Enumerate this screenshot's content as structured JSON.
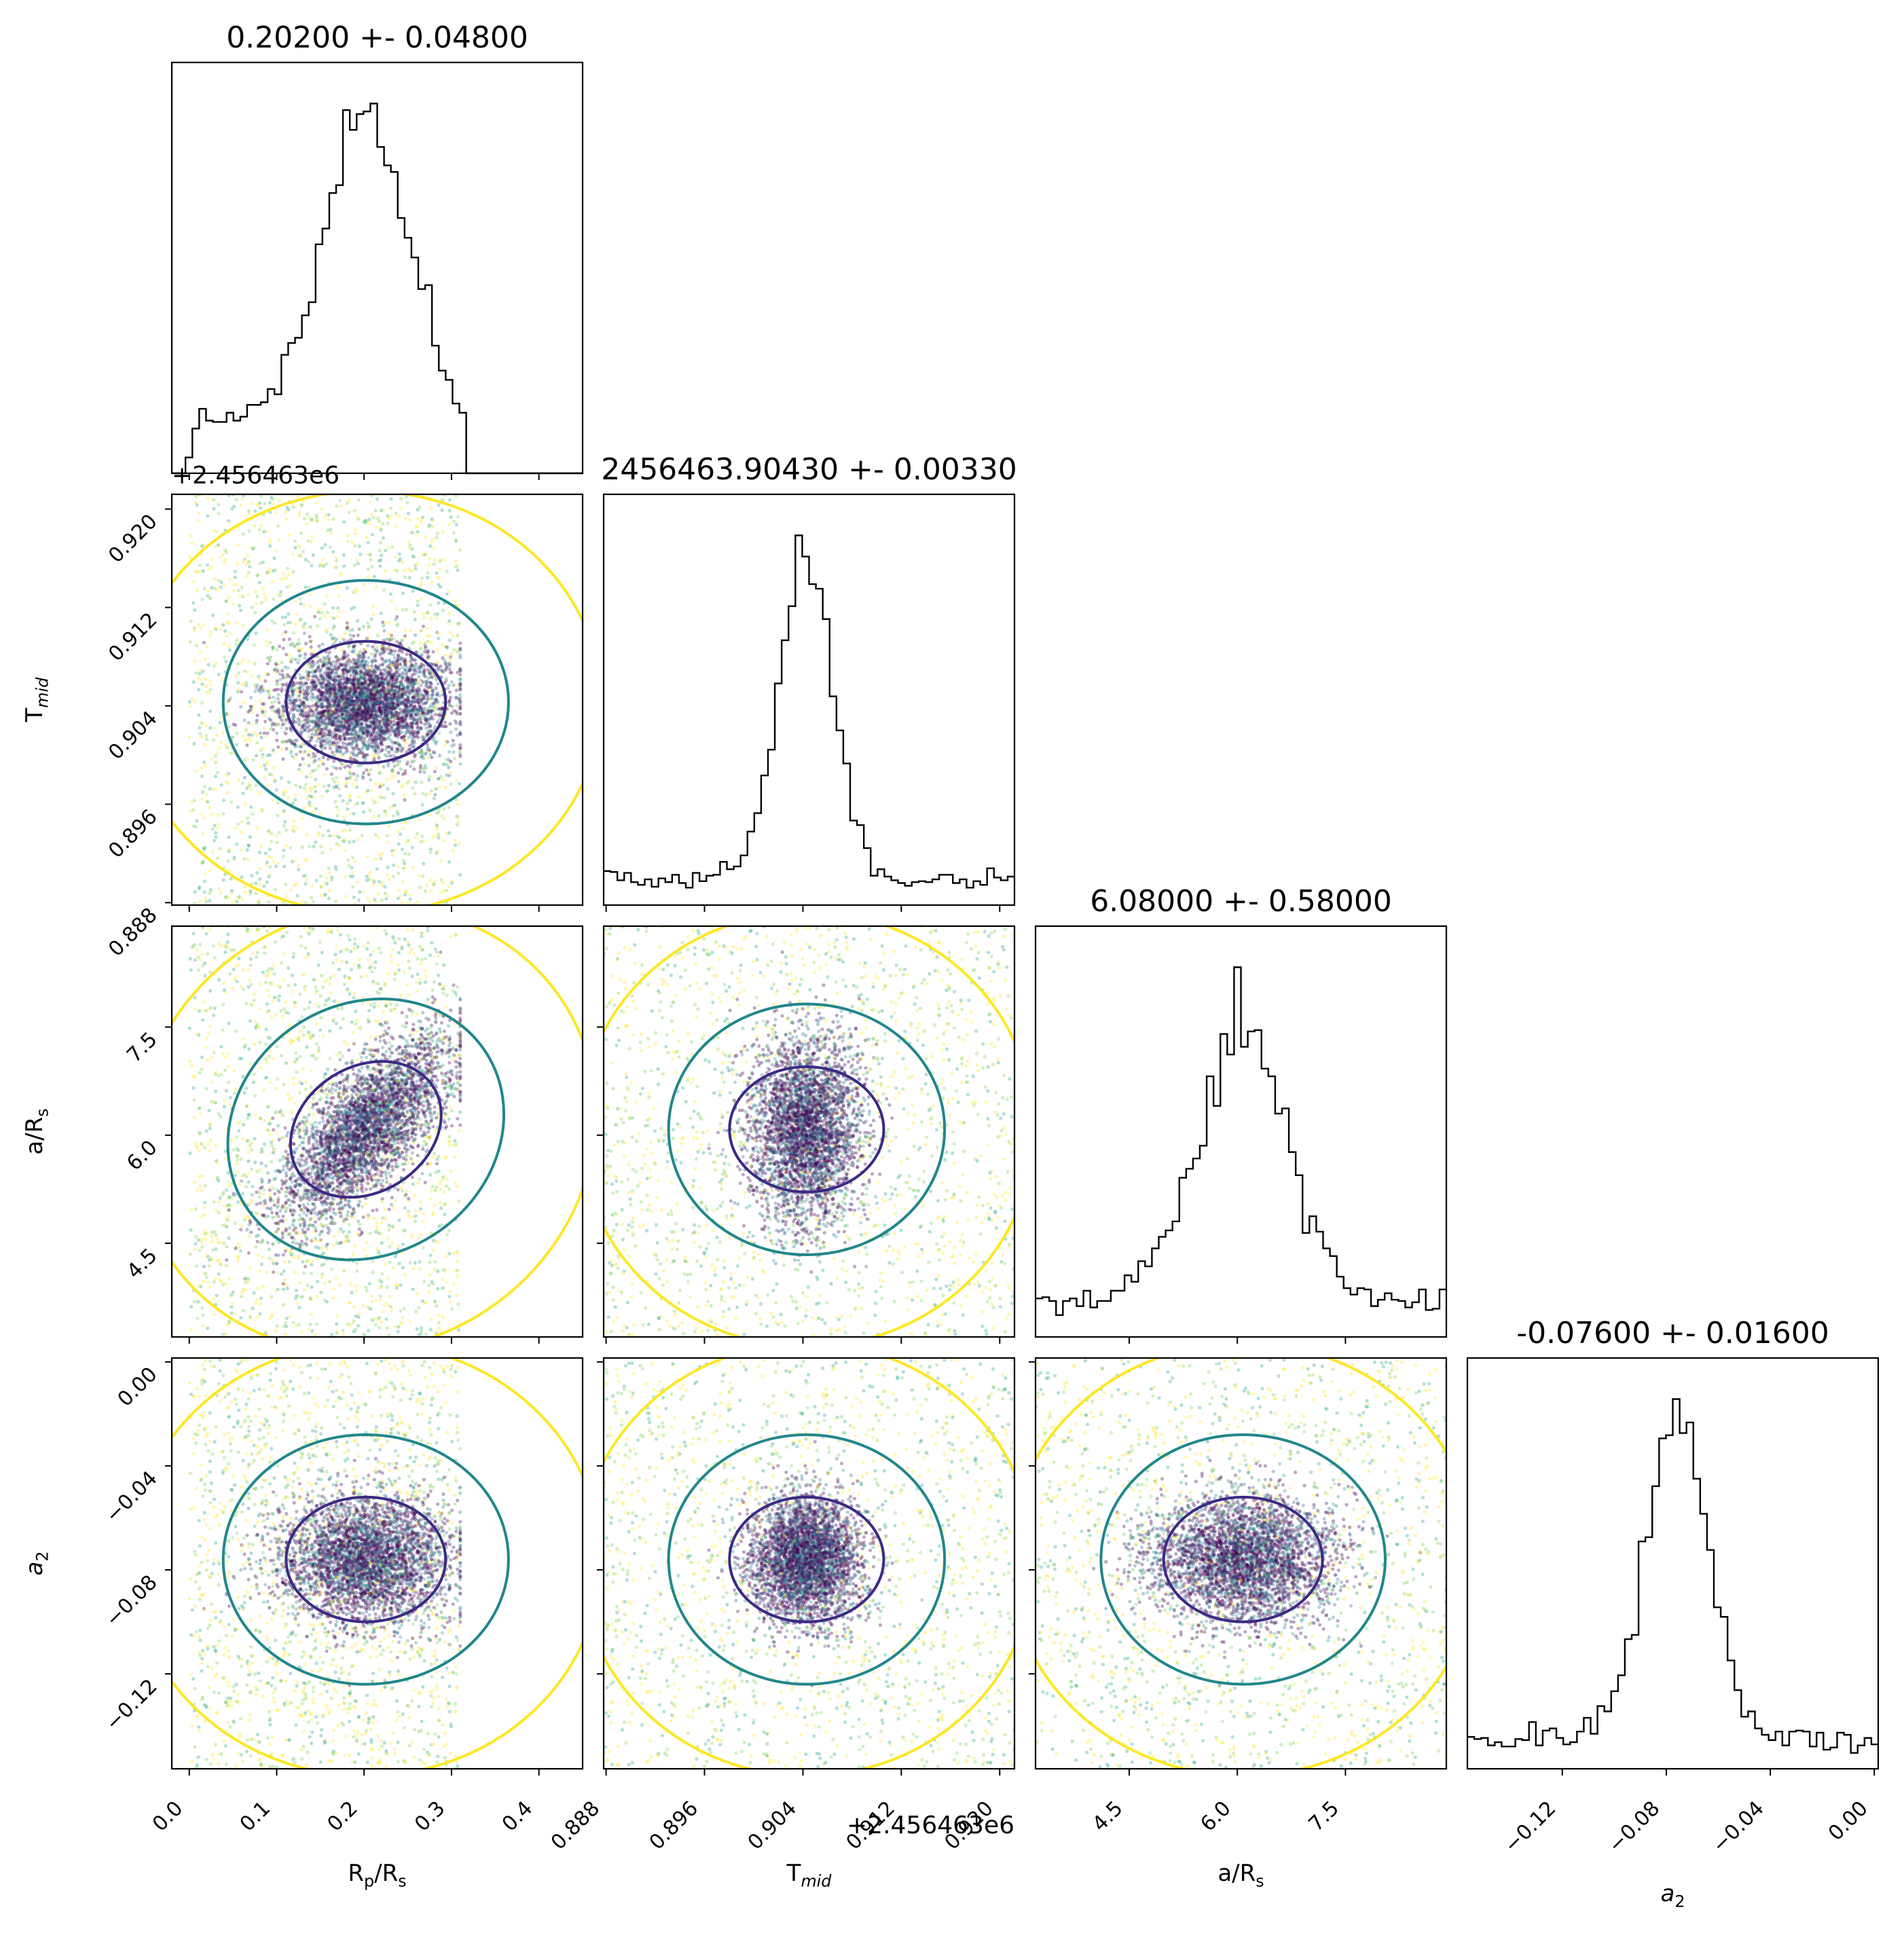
{
  "chart_data": {
    "type": "scatter",
    "subtype": "corner-plot",
    "parameters": [
      {
        "key": "rp",
        "label_main": "R",
        "label_sub": "p",
        "label_tail": "/R",
        "label_tail_sub": "s",
        "title": "0.20200 +- 0.04800",
        "range": [
          -0.02,
          0.45
        ],
        "ticks": [
          0.0,
          0.1,
          0.2,
          0.3,
          0.4
        ],
        "tick_labels": [
          "0.0",
          "0.1",
          "0.2",
          "0.3",
          "0.4"
        ],
        "median": 0.202,
        "sigma": 0.048
      },
      {
        "key": "tmid",
        "label_main": "T",
        "label_sub": "mid",
        "label_tail": "",
        "label_tail_sub": "",
        "title": "2456463.90430 +- 0.00330",
        "offset_text": "+2.456463e6",
        "range": [
          0.8878,
          0.9212
        ],
        "ticks": [
          0.888,
          0.896,
          0.904,
          0.912,
          0.92
        ],
        "tick_labels": [
          "0.888",
          "0.896",
          "0.904",
          "0.912",
          "0.920"
        ],
        "median": 0.9043,
        "sigma": 0.0033
      },
      {
        "key": "ars",
        "label_main": "a/R",
        "label_sub": "s",
        "label_tail": "",
        "label_tail_sub": "",
        "title": "6.08000 +- 0.58000",
        "range": [
          3.2,
          8.9
        ],
        "ticks": [
          4.5,
          6.0,
          7.5
        ],
        "tick_labels": [
          "4.5",
          "6.0",
          "7.5"
        ],
        "median": 6.08,
        "sigma": 0.58
      },
      {
        "key": "a2",
        "label_main": "a",
        "label_sub": "2",
        "label_tail": "",
        "label_tail_sub": "",
        "label_italic": true,
        "title": "-0.07600 +- 0.01600",
        "range": [
          -0.1565,
          0.0015
        ],
        "ticks": [
          -0.12,
          -0.08,
          -0.04,
          0.0
        ],
        "tick_labels": [
          "−0.12",
          "−0.08",
          "−0.04",
          "0.00"
        ],
        "median": -0.076,
        "sigma": 0.016
      }
    ],
    "colors": {
      "contour_inner": "#3b2a83",
      "contour_mid": "#21868b",
      "contour_outer": "#fde725",
      "points_dense": "#440154",
      "hist": "#000000"
    },
    "contour_levels": [
      "1-sigma",
      "2-sigma",
      "3-sigma"
    ]
  }
}
